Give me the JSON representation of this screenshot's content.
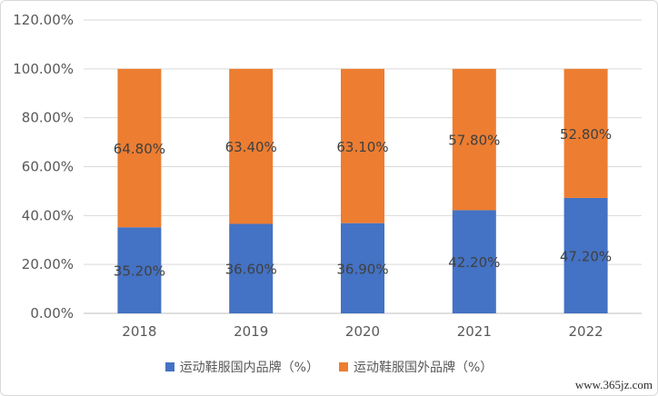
{
  "chart_data": {
    "type": "bar",
    "stacked": true,
    "categories": [
      "2018",
      "2019",
      "2020",
      "2021",
      "2022"
    ],
    "series": [
      {
        "name": "运动鞋服国内品牌（%）",
        "values": [
          35.2,
          36.6,
          36.9,
          42.2,
          47.2
        ],
        "labels": [
          "35.20%",
          "36.60%",
          "36.90%",
          "42.20%",
          "47.20%"
        ],
        "color": "#4472C4"
      },
      {
        "name": "运动鞋服国外品牌（%）",
        "values": [
          64.8,
          63.4,
          63.1,
          57.8,
          52.8
        ],
        "labels": [
          "64.80%",
          "63.40%",
          "63.10%",
          "57.80%",
          "52.80%"
        ],
        "color": "#ED7D31"
      }
    ],
    "ylim": [
      0,
      120
    ],
    "yticks": [
      "0.00%",
      "20.00%",
      "40.00%",
      "60.00%",
      "80.00%",
      "100.00%",
      "120.00%"
    ],
    "grid": true,
    "legend_position": "bottom"
  },
  "watermark": "www.365jz.com"
}
